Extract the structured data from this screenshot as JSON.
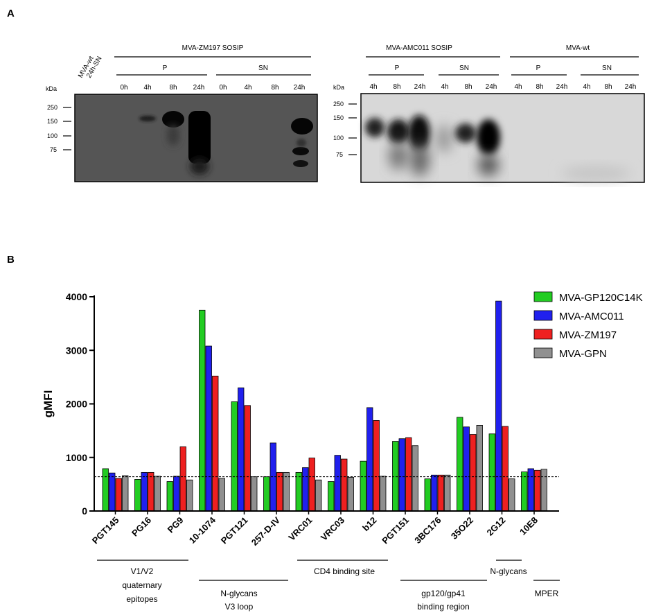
{
  "panel_a": {
    "label": "A",
    "lane0_label": [
      "MVA-wt",
      "24h-SN"
    ],
    "blot1": {
      "group_label": "MVA-ZM197  SOSIP",
      "sub_labels": [
        "P",
        "SN"
      ],
      "time_labels": [
        "0h",
        "4h",
        "8h",
        "24h",
        "0h",
        "4h",
        "8h",
        "24h"
      ],
      "kda_label": "kDa",
      "markers": [
        "250",
        "150",
        "100",
        "75"
      ]
    },
    "blot2": {
      "group_labels": [
        "MVA-AMC011  SOSIP",
        "MVA-wt"
      ],
      "sub_labels": [
        "P",
        "SN",
        "P",
        "SN"
      ],
      "time_labels": [
        "4h",
        "8h",
        "24h",
        "4h",
        "8h",
        "24h",
        "4h",
        "8h",
        "24h",
        "4h",
        "8h",
        "24h"
      ],
      "kda_label": "kDa",
      "markers": [
        "250",
        "150",
        "100",
        "75"
      ]
    }
  },
  "panel_b": {
    "label": "B",
    "epitope_groups": [
      [
        "V1/V2",
        "quaternary",
        "epitopes"
      ],
      [
        "N-glycans",
        "V3 loop"
      ],
      [
        "CD4 binding site"
      ],
      [
        "gp120/gp41",
        "binding region"
      ],
      [
        "N-glycans"
      ],
      [
        "MPER"
      ]
    ]
  },
  "chart_data": {
    "type": "bar",
    "title": "",
    "xlabel": "",
    "ylabel": "gMFI",
    "ylim": [
      0,
      4000
    ],
    "yticks": [
      0,
      1000,
      2000,
      3000,
      4000
    ],
    "categories": [
      "PGT145",
      "PG16",
      "PG9",
      "10-1074",
      "PGT121",
      "257-D-IV",
      "VRC01",
      "VRC03",
      "b12",
      "PGT151",
      "3BC176",
      "35O22",
      "2G12",
      "10E8"
    ],
    "series": [
      {
        "name": "MVA-GP120C14K",
        "color": "#22cc22",
        "values": [
          790,
          590,
          550,
          3750,
          2040,
          640,
          720,
          550,
          930,
          1300,
          600,
          1750,
          1440,
          730
        ]
      },
      {
        "name": "MVA-AMC011",
        "color": "#2020ee",
        "values": [
          710,
          720,
          650,
          3080,
          2300,
          1270,
          810,
          1040,
          1930,
          1350,
          670,
          1570,
          3920,
          790
        ]
      },
      {
        "name": "MVA-ZM197",
        "color": "#ee2020",
        "values": [
          610,
          720,
          1200,
          2520,
          1970,
          720,
          990,
          970,
          1690,
          1370,
          670,
          1430,
          1580,
          760
        ]
      },
      {
        "name": "MVA-GPN",
        "color": "#909090",
        "values": [
          660,
          650,
          580,
          610,
          640,
          720,
          580,
          630,
          650,
          1220,
          670,
          1600,
          600,
          780
        ]
      }
    ],
    "reference_line": 640,
    "grid": false,
    "legend_position": "top-right"
  }
}
